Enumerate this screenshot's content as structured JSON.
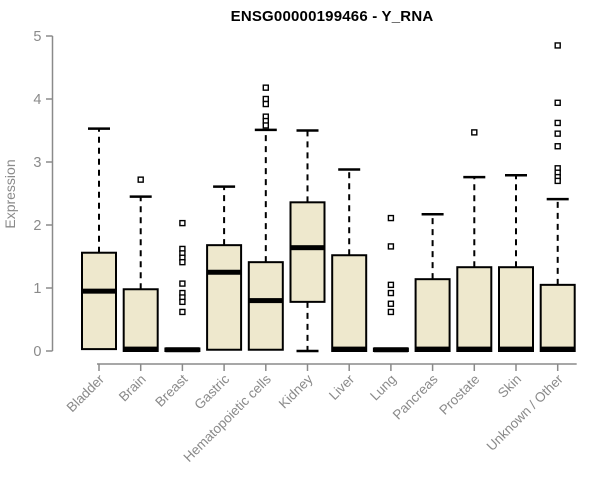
{
  "colors": {
    "background": "#ffffff",
    "axis": "#8a8a8a",
    "title_color": "#000000",
    "box_fill": "#EEE8CD",
    "box_stroke": "#000000"
  },
  "chart_data": {
    "type": "boxplot",
    "title": "ENSG00000199466 - Y_RNA",
    "xlabel": "",
    "ylabel": "Expression",
    "ylim": [
      0,
      5
    ],
    "yticks": [
      0,
      1,
      2,
      3,
      4,
      5
    ],
    "grid": "off",
    "legend": "none",
    "categories": [
      "Bladder",
      "Brain",
      "Breast",
      "Gastric",
      "Hematopoietic cells",
      "Kidney",
      "Liver",
      "Lung",
      "Pancreas",
      "Prostate",
      "Skin",
      "Unknown / Other"
    ],
    "boxes": [
      {
        "category": "Bladder",
        "whisker_low": null,
        "q1": 0.03,
        "median": 0.95,
        "q3": 1.56,
        "whisker_high": 3.53,
        "outliers": []
      },
      {
        "category": "Brain",
        "whisker_low": null,
        "q1": 0.0,
        "median": 0.03,
        "q3": 0.98,
        "whisker_high": 2.45,
        "outliers": [
          2.72
        ]
      },
      {
        "category": "Breast",
        "whisker_low": null,
        "q1": 0.0,
        "median": 0.02,
        "q3": 0.04,
        "whisker_high": null,
        "outliers": [
          2.03,
          1.62,
          1.55,
          1.48,
          1.41,
          1.07,
          0.92,
          0.85,
          0.78,
          0.62
        ]
      },
      {
        "category": "Gastric",
        "whisker_low": null,
        "q1": 0.02,
        "median": 1.25,
        "q3": 1.68,
        "whisker_high": 2.61,
        "outliers": []
      },
      {
        "category": "Hematopoietic cells",
        "whisker_low": null,
        "q1": 0.02,
        "median": 0.8,
        "q3": 1.41,
        "whisker_high": 3.51,
        "outliers": [
          4.18,
          4.0,
          3.92,
          3.72,
          3.65,
          3.58
        ]
      },
      {
        "category": "Kidney",
        "whisker_low": 0.0,
        "q1": 0.78,
        "median": 1.64,
        "q3": 2.36,
        "whisker_high": 3.5,
        "outliers": []
      },
      {
        "category": "Liver",
        "whisker_low": null,
        "q1": 0.0,
        "median": 0.03,
        "q3": 1.52,
        "whisker_high": 2.88,
        "outliers": []
      },
      {
        "category": "Lung",
        "whisker_low": null,
        "q1": 0.0,
        "median": 0.02,
        "q3": 0.04,
        "whisker_high": null,
        "outliers": [
          2.11,
          1.66,
          1.05,
          0.92,
          0.75,
          0.62
        ]
      },
      {
        "category": "Pancreas",
        "whisker_low": null,
        "q1": 0.0,
        "median": 0.03,
        "q3": 1.14,
        "whisker_high": 2.17,
        "outliers": []
      },
      {
        "category": "Prostate",
        "whisker_low": null,
        "q1": 0.0,
        "median": 0.03,
        "q3": 1.33,
        "whisker_high": 2.76,
        "outliers": [
          3.47
        ]
      },
      {
        "category": "Skin",
        "whisker_low": null,
        "q1": 0.0,
        "median": 0.03,
        "q3": 1.33,
        "whisker_high": 2.79,
        "outliers": []
      },
      {
        "category": "Unknown / Other",
        "whisker_low": null,
        "q1": 0.0,
        "median": 0.03,
        "q3": 1.05,
        "whisker_high": 2.41,
        "outliers": [
          4.85,
          3.94,
          3.62,
          3.45,
          3.25,
          2.9,
          2.83,
          2.76,
          2.7
        ]
      }
    ]
  }
}
